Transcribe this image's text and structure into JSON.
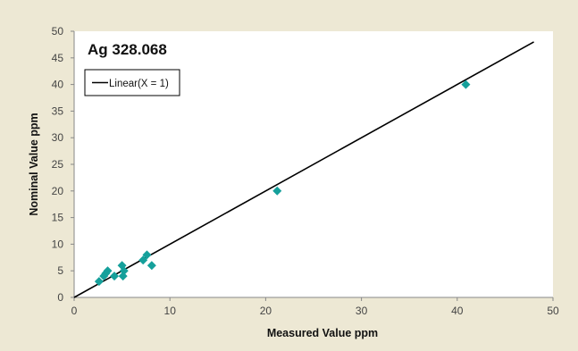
{
  "chart_data": {
    "type": "scatter",
    "title": "Ag 328.068",
    "xlabel": "Measured Value ppm",
    "ylabel": "Nominal Value ppm",
    "xlim": [
      0,
      50
    ],
    "ylim": [
      0,
      50
    ],
    "x_ticks": [
      0,
      10,
      20,
      30,
      40,
      50
    ],
    "y_ticks": [
      0,
      5,
      10,
      15,
      20,
      25,
      30,
      35,
      40,
      45,
      50
    ],
    "grid": false,
    "legend": {
      "position": "top-left",
      "entries": [
        "Linear(X = 1)"
      ]
    },
    "series": [
      {
        "marker": "diamond",
        "color": "#15a09b",
        "points": [
          [
            2.6,
            3
          ],
          [
            3.1,
            4
          ],
          [
            3.5,
            5
          ],
          [
            3.3,
            4.5
          ],
          [
            4.2,
            4
          ],
          [
            5.0,
            6
          ],
          [
            5.2,
            5
          ],
          [
            5.1,
            4
          ],
          [
            7.2,
            7
          ],
          [
            7.6,
            8
          ],
          [
            8.1,
            6
          ],
          [
            21.2,
            20
          ],
          [
            40.9,
            40
          ]
        ]
      }
    ],
    "line": {
      "name": "Linear(X = 1)",
      "color": "#000000",
      "x": [
        0,
        48
      ],
      "y": [
        0,
        48
      ]
    }
  },
  "colors": {
    "background": "#ede8d4",
    "plot_area": "#ffffff",
    "marker": "#15a09b"
  }
}
